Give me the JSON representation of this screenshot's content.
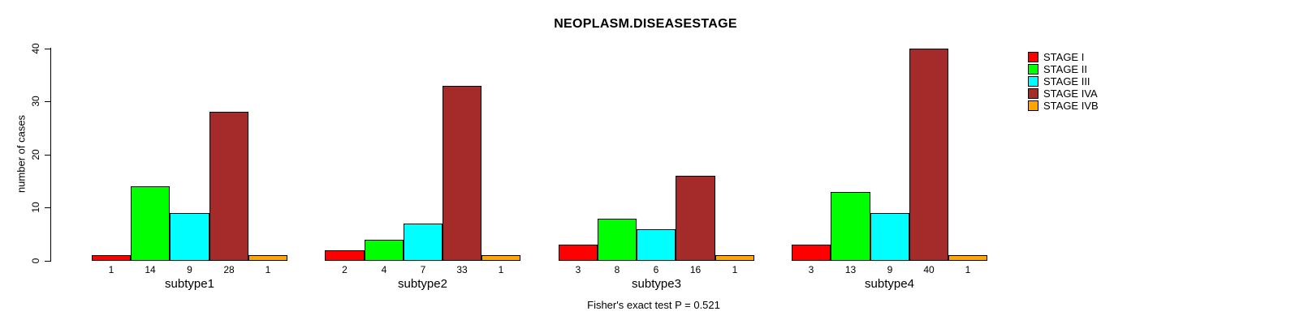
{
  "title": "NEOPLASM.DISEASESTAGE",
  "footer": "Fisher's exact test P = 0.521",
  "y_axis": {
    "label": "number of cases",
    "ticks": [
      0,
      10,
      20,
      30,
      40
    ]
  },
  "legend": {
    "position": "right",
    "items": [
      {
        "label": "STAGE I",
        "color": "#FF0000"
      },
      {
        "label": "STAGE II",
        "color": "#00FF00"
      },
      {
        "label": "STAGE III",
        "color": "#00FFFF"
      },
      {
        "label": "STAGE IVA",
        "color": "#A52A2A"
      },
      {
        "label": "STAGE IVB",
        "color": "#FFA500"
      }
    ]
  },
  "chart_data": {
    "type": "bar",
    "title": "NEOPLASM.DISEASESTAGE",
    "xlabel": "",
    "ylabel": "number of cases",
    "ylim": [
      0,
      40
    ],
    "grid": false,
    "legend_position": "right",
    "bar_value_labels": true,
    "categories": [
      "subtype1",
      "subtype2",
      "subtype3",
      "subtype4"
    ],
    "series": [
      {
        "name": "STAGE I",
        "color": "#FF0000",
        "values": [
          1,
          2,
          3,
          3
        ]
      },
      {
        "name": "STAGE II",
        "color": "#00FF00",
        "values": [
          14,
          4,
          8,
          13
        ]
      },
      {
        "name": "STAGE III",
        "color": "#00FFFF",
        "values": [
          9,
          7,
          6,
          9
        ]
      },
      {
        "name": "STAGE IVA",
        "color": "#A52A2A",
        "values": [
          28,
          33,
          16,
          40
        ]
      },
      {
        "name": "STAGE IVB",
        "color": "#FFA500",
        "values": [
          1,
          1,
          1,
          1
        ]
      }
    ],
    "annotation": "Fisher's exact test P = 0.521"
  }
}
